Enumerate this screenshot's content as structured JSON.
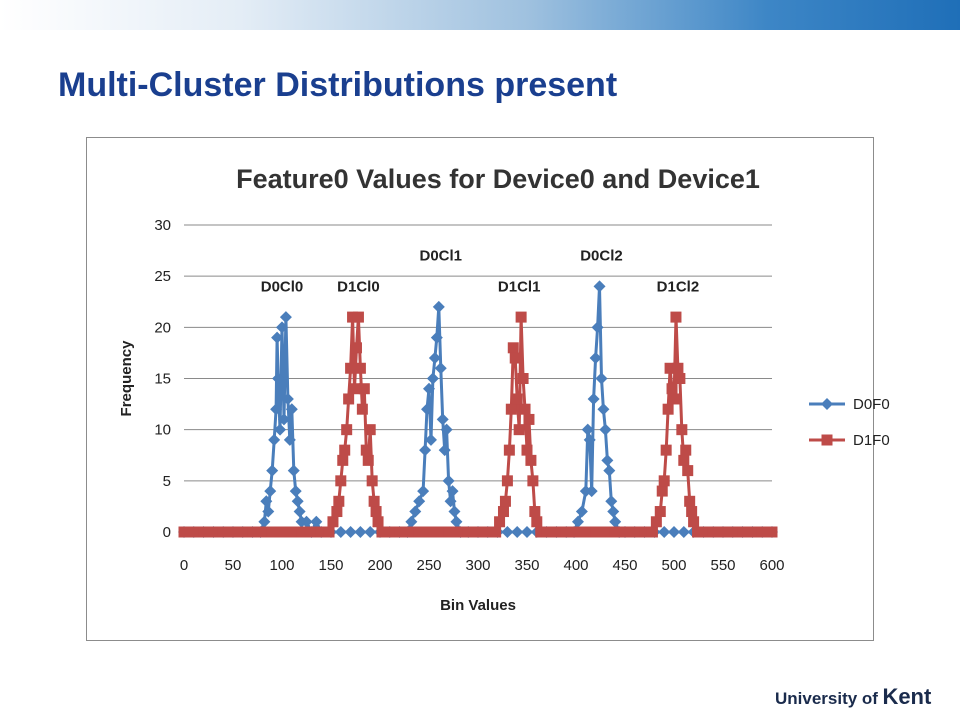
{
  "slide": {
    "title": "Multi-Cluster Distributions present"
  },
  "branding": {
    "prefix": "University of",
    "name": "Kent"
  },
  "chart_data": {
    "type": "line",
    "title": "Feature0 Values for Device0 and Device1",
    "xlabel": "Bin Values",
    "ylabel": "Frequency",
    "xlim": [
      0,
      600
    ],
    "ylim": [
      0,
      30
    ],
    "x_ticks": [
      0,
      50,
      100,
      150,
      200,
      250,
      300,
      350,
      400,
      450,
      500,
      550,
      600
    ],
    "y_ticks": [
      0,
      5,
      10,
      15,
      20,
      25,
      30
    ],
    "grid": "horizontal",
    "legend": "right",
    "series": [
      {
        "name": "D0F0",
        "color": "#4a7ebb",
        "marker": "diamond",
        "points": [
          [
            0,
            0
          ],
          [
            10,
            0
          ],
          [
            20,
            0
          ],
          [
            30,
            0
          ],
          [
            40,
            0
          ],
          [
            50,
            0
          ],
          [
            60,
            0
          ],
          [
            70,
            0
          ],
          [
            78,
            0
          ],
          [
            82,
            1
          ],
          [
            84,
            3
          ],
          [
            86,
            2
          ],
          [
            88,
            4
          ],
          [
            90,
            6
          ],
          [
            92,
            9
          ],
          [
            94,
            12
          ],
          [
            95,
            19
          ],
          [
            96,
            15
          ],
          [
            98,
            10
          ],
          [
            100,
            20
          ],
          [
            102,
            11
          ],
          [
            104,
            21
          ],
          [
            106,
            13
          ],
          [
            108,
            9
          ],
          [
            110,
            12
          ],
          [
            112,
            6
          ],
          [
            114,
            4
          ],
          [
            116,
            3
          ],
          [
            118,
            2
          ],
          [
            120,
            1
          ],
          [
            125,
            1
          ],
          [
            130,
            0
          ],
          [
            135,
            1
          ],
          [
            140,
            0
          ],
          [
            150,
            0
          ],
          [
            160,
            0
          ],
          [
            170,
            0
          ],
          [
            180,
            0
          ],
          [
            190,
            0
          ],
          [
            200,
            0
          ],
          [
            210,
            0
          ],
          [
            220,
            0
          ],
          [
            228,
            0
          ],
          [
            232,
            1
          ],
          [
            236,
            2
          ],
          [
            240,
            3
          ],
          [
            244,
            4
          ],
          [
            246,
            8
          ],
          [
            248,
            12
          ],
          [
            250,
            14
          ],
          [
            252,
            9
          ],
          [
            254,
            15
          ],
          [
            256,
            17
          ],
          [
            258,
            19
          ],
          [
            260,
            22
          ],
          [
            262,
            16
          ],
          [
            264,
            11
          ],
          [
            266,
            8
          ],
          [
            268,
            10
          ],
          [
            270,
            5
          ],
          [
            272,
            3
          ],
          [
            274,
            4
          ],
          [
            276,
            2
          ],
          [
            278,
            1
          ],
          [
            282,
            0
          ],
          [
            290,
            0
          ],
          [
            300,
            0
          ],
          [
            310,
            0
          ],
          [
            320,
            0
          ],
          [
            330,
            0
          ],
          [
            340,
            0
          ],
          [
            350,
            0
          ],
          [
            360,
            0
          ],
          [
            370,
            0
          ],
          [
            380,
            0
          ],
          [
            390,
            0
          ],
          [
            398,
            0
          ],
          [
            402,
            1
          ],
          [
            406,
            2
          ],
          [
            410,
            4
          ],
          [
            412,
            10
          ],
          [
            414,
            9
          ],
          [
            416,
            4
          ],
          [
            418,
            13
          ],
          [
            420,
            17
          ],
          [
            422,
            20
          ],
          [
            424,
            24
          ],
          [
            426,
            15
          ],
          [
            428,
            12
          ],
          [
            430,
            10
          ],
          [
            432,
            7
          ],
          [
            434,
            6
          ],
          [
            436,
            3
          ],
          [
            438,
            2
          ],
          [
            440,
            1
          ],
          [
            444,
            0
          ],
          [
            450,
            0
          ],
          [
            460,
            0
          ],
          [
            470,
            0
          ],
          [
            480,
            0
          ],
          [
            490,
            0
          ],
          [
            500,
            0
          ],
          [
            510,
            0
          ],
          [
            520,
            0
          ],
          [
            530,
            0
          ],
          [
            540,
            0
          ],
          [
            550,
            0
          ],
          [
            560,
            0
          ],
          [
            570,
            0
          ],
          [
            580,
            0
          ],
          [
            590,
            0
          ],
          [
            600,
            0
          ]
        ]
      },
      {
        "name": "D1F0",
        "color": "#be4b48",
        "marker": "square",
        "points": [
          [
            0,
            0
          ],
          [
            10,
            0
          ],
          [
            20,
            0
          ],
          [
            30,
            0
          ],
          [
            40,
            0
          ],
          [
            50,
            0
          ],
          [
            60,
            0
          ],
          [
            70,
            0
          ],
          [
            80,
            0
          ],
          [
            90,
            0
          ],
          [
            100,
            0
          ],
          [
            110,
            0
          ],
          [
            120,
            0
          ],
          [
            130,
            0
          ],
          [
            140,
            0
          ],
          [
            148,
            0
          ],
          [
            152,
            1
          ],
          [
            156,
            2
          ],
          [
            158,
            3
          ],
          [
            160,
            5
          ],
          [
            162,
            7
          ],
          [
            164,
            8
          ],
          [
            166,
            10
          ],
          [
            168,
            13
          ],
          [
            170,
            16
          ],
          [
            172,
            21
          ],
          [
            174,
            14
          ],
          [
            176,
            18
          ],
          [
            178,
            21
          ],
          [
            180,
            16
          ],
          [
            182,
            12
          ],
          [
            184,
            14
          ],
          [
            186,
            8
          ],
          [
            188,
            7
          ],
          [
            190,
            10
          ],
          [
            192,
            5
          ],
          [
            194,
            3
          ],
          [
            196,
            2
          ],
          [
            198,
            1
          ],
          [
            202,
            0
          ],
          [
            210,
            0
          ],
          [
            220,
            0
          ],
          [
            230,
            0
          ],
          [
            240,
            0
          ],
          [
            250,
            0
          ],
          [
            260,
            0
          ],
          [
            270,
            0
          ],
          [
            280,
            0
          ],
          [
            290,
            0
          ],
          [
            300,
            0
          ],
          [
            310,
            0
          ],
          [
            318,
            0
          ],
          [
            322,
            1
          ],
          [
            326,
            2
          ],
          [
            328,
            3
          ],
          [
            330,
            5
          ],
          [
            332,
            8
          ],
          [
            334,
            12
          ],
          [
            336,
            18
          ],
          [
            338,
            17
          ],
          [
            340,
            13
          ],
          [
            342,
            10
          ],
          [
            344,
            21
          ],
          [
            346,
            15
          ],
          [
            348,
            12
          ],
          [
            350,
            8
          ],
          [
            352,
            11
          ],
          [
            354,
            7
          ],
          [
            356,
            5
          ],
          [
            358,
            2
          ],
          [
            360,
            1
          ],
          [
            364,
            0
          ],
          [
            370,
            0
          ],
          [
            380,
            0
          ],
          [
            390,
            0
          ],
          [
            400,
            0
          ],
          [
            410,
            0
          ],
          [
            420,
            0
          ],
          [
            430,
            0
          ],
          [
            440,
            0
          ],
          [
            450,
            0
          ],
          [
            460,
            0
          ],
          [
            470,
            0
          ],
          [
            478,
            0
          ],
          [
            482,
            1
          ],
          [
            486,
            2
          ],
          [
            488,
            4
          ],
          [
            490,
            5
          ],
          [
            492,
            8
          ],
          [
            494,
            12
          ],
          [
            496,
            16
          ],
          [
            498,
            14
          ],
          [
            500,
            13
          ],
          [
            502,
            21
          ],
          [
            504,
            16
          ],
          [
            506,
            15
          ],
          [
            508,
            10
          ],
          [
            510,
            7
          ],
          [
            512,
            8
          ],
          [
            514,
            6
          ],
          [
            516,
            3
          ],
          [
            518,
            2
          ],
          [
            520,
            1
          ],
          [
            524,
            0
          ],
          [
            530,
            0
          ],
          [
            540,
            0
          ],
          [
            550,
            0
          ],
          [
            560,
            0
          ],
          [
            570,
            0
          ],
          [
            580,
            0
          ],
          [
            590,
            0
          ],
          [
            600,
            0
          ]
        ]
      }
    ],
    "annotations": [
      {
        "text": "D0Cl0",
        "x": 100,
        "y": 24
      },
      {
        "text": "D1Cl0",
        "x": 178,
        "y": 24
      },
      {
        "text": "D0Cl1",
        "x": 262,
        "y": 27
      },
      {
        "text": "D1Cl1",
        "x": 342,
        "y": 24
      },
      {
        "text": "D0Cl2",
        "x": 426,
        "y": 27
      },
      {
        "text": "D1Cl2",
        "x": 504,
        "y": 24
      }
    ]
  }
}
